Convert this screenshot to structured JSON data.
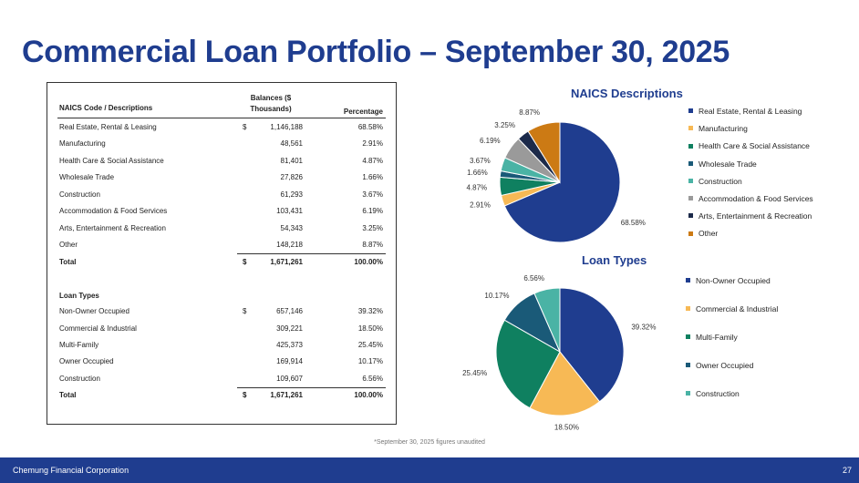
{
  "title": "Commercial Loan Portfolio – September 30, 2025",
  "table": {
    "header": {
      "col1": "NAICS Code / Descriptions",
      "col2_line1": "Balances ($",
      "col2_line2": "Thousands)",
      "col3": "Percentage"
    },
    "naics_rows": [
      {
        "label": "Real Estate, Rental & Leasing",
        "dollar": "$",
        "balance": "1,146,188",
        "pct": "68.58%"
      },
      {
        "label": "Manufacturing",
        "dollar": "",
        "balance": "48,561",
        "pct": "2.91%"
      },
      {
        "label": "Health Care & Social Assistance",
        "dollar": "",
        "balance": "81,401",
        "pct": "4.87%"
      },
      {
        "label": "Wholesale Trade",
        "dollar": "",
        "balance": "27,826",
        "pct": "1.66%"
      },
      {
        "label": "Construction",
        "dollar": "",
        "balance": "61,293",
        "pct": "3.67%"
      },
      {
        "label": "Accommodation & Food Services",
        "dollar": "",
        "balance": "103,431",
        "pct": "6.19%"
      },
      {
        "label": "Arts, Entertainment & Recreation",
        "dollar": "",
        "balance": "54,343",
        "pct": "3.25%"
      },
      {
        "label": "Other",
        "dollar": "",
        "balance": "148,218",
        "pct": "8.87%"
      }
    ],
    "naics_total": {
      "label": "Total",
      "dollar": "$",
      "balance": "1,671,261",
      "pct": "100.00%"
    },
    "loan_types_header": "Loan Types",
    "loan_rows": [
      {
        "label": "Non-Owner Occupied",
        "dollar": "$",
        "balance": "657,146",
        "pct": "39.32%"
      },
      {
        "label": "Commercial & Industrial",
        "dollar": "",
        "balance": "309,221",
        "pct": "18.50%"
      },
      {
        "label": "Multi-Family",
        "dollar": "",
        "balance": "425,373",
        "pct": "25.45%"
      },
      {
        "label": "Owner Occupied",
        "dollar": "",
        "balance": "169,914",
        "pct": "10.17%"
      },
      {
        "label": "Construction",
        "dollar": "",
        "balance": "109,607",
        "pct": "6.56%"
      }
    ],
    "loan_total": {
      "label": "Total",
      "dollar": "$",
      "balance": "1,671,261",
      "pct": "100.00%"
    }
  },
  "chart_data": [
    {
      "type": "pie",
      "title": "NAICS Descriptions",
      "legend_position": "right",
      "categories": [
        "Real Estate, Rental & Leasing",
        "Manufacturing",
        "Health Care & Social Assistance",
        "Wholesale Trade",
        "Construction",
        "Accommodation & Food Services",
        "Arts, Entertainment & Recreation",
        "Other"
      ],
      "values": [
        68.58,
        2.91,
        4.87,
        1.66,
        3.67,
        6.19,
        3.25,
        8.87
      ],
      "labels": [
        "68.58%",
        "2.91%",
        "4.87%",
        "1.66%",
        "3.67%",
        "6.19%",
        "3.25%",
        "8.87%"
      ],
      "colors": [
        "#1f3d8f",
        "#f7b955",
        "#0f8060",
        "#1a5a78",
        "#4ab3a5",
        "#9a9a9a",
        "#1c2a4a",
        "#cc7a14"
      ]
    },
    {
      "type": "pie",
      "title": "Loan Types",
      "legend_position": "right",
      "categories": [
        "Non-Owner Occupied",
        "Commercial & Industrial",
        "Multi-Family",
        "Owner Occupied",
        "Construction"
      ],
      "values": [
        39.32,
        18.5,
        25.45,
        10.17,
        6.56
      ],
      "labels": [
        "39.32%",
        "18.50%",
        "25.45%",
        "10.17%",
        "6.56%"
      ],
      "colors": [
        "#1f3d8f",
        "#f7b955",
        "#0f8060",
        "#1a5a78",
        "#4ab3a5"
      ]
    }
  ],
  "footnote": "*September 30, 2025 figures unaudited",
  "footer": {
    "company": "Chemung Financial Corporation",
    "page": "27"
  }
}
